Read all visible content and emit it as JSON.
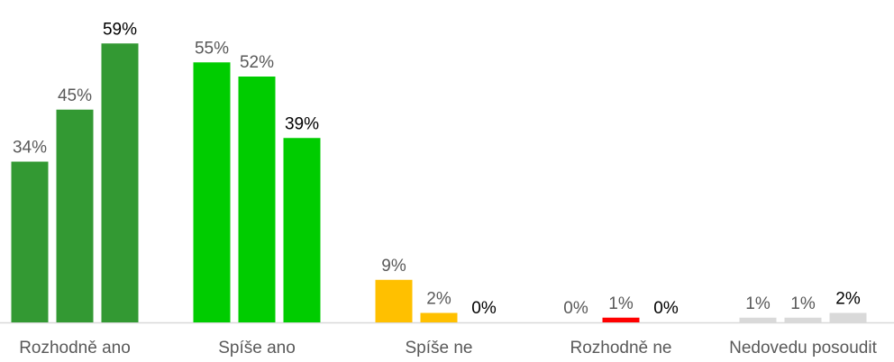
{
  "chart_data": {
    "type": "bar",
    "categories": [
      "Rozhodně ano",
      "Spíše ano",
      "Spíše ne",
      "Rozhodně ne",
      "Nedovedu posoudit"
    ],
    "category_colors": [
      "#339933",
      "#00cc00",
      "#ffc000",
      "#ff0000",
      "#d9d9d9"
    ],
    "series": [
      {
        "values": [
          34,
          55,
          9,
          0,
          1
        ],
        "value_labels": [
          "34%",
          "55%",
          "9%",
          "0%",
          "1%"
        ],
        "label_color": "#595959"
      },
      {
        "values": [
          45,
          52,
          2,
          1,
          1
        ],
        "value_labels": [
          "45%",
          "52%",
          "2%",
          "1%",
          "1%"
        ],
        "label_color": "#595959"
      },
      {
        "values": [
          59,
          39,
          0,
          0,
          2
        ],
        "value_labels": [
          "59%",
          "39%",
          "0%",
          "0%",
          "2%"
        ],
        "label_color": "#000000"
      }
    ],
    "ylim": [
      0,
      60
    ]
  }
}
